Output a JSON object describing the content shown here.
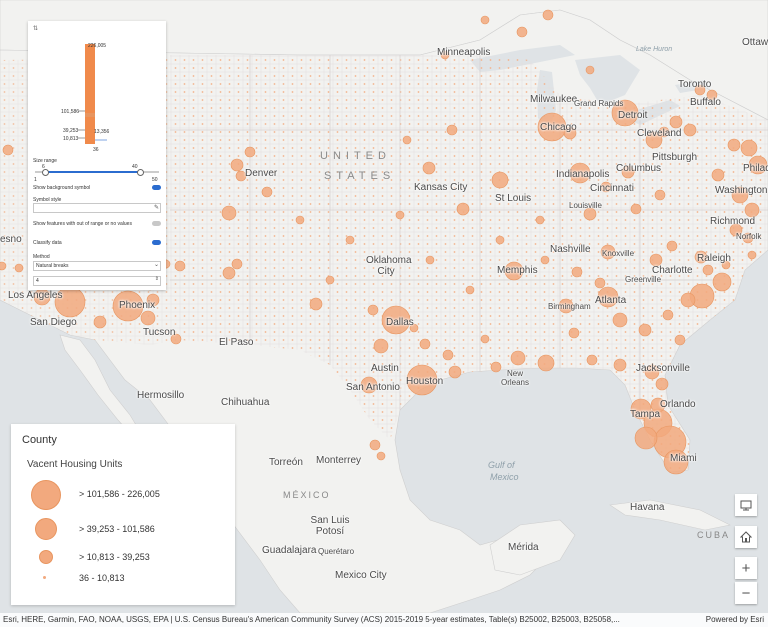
{
  "map": {
    "country_label": "UNITED STATES",
    "country_label_line1": "UNITED",
    "country_label_line2": "STATES",
    "mexico_label": "MÉXICO",
    "cuba_label": "CUBA",
    "gulf_label_1": "Gulf of",
    "gulf_label_2": "Mexico",
    "lake_label": "Lake Huron",
    "cities": [
      {
        "name": "Minneapolis"
      },
      {
        "name": "Milwaukee"
      },
      {
        "name": "Grand Rapids"
      },
      {
        "name": "Detroit"
      },
      {
        "name": "Toronto"
      },
      {
        "name": "Ottawa"
      },
      {
        "name": "Buffalo"
      },
      {
        "name": "Cleveland"
      },
      {
        "name": "Chicago"
      },
      {
        "name": "Pittsburgh"
      },
      {
        "name": "Philad"
      },
      {
        "name": "Washington"
      },
      {
        "name": "Columbus"
      },
      {
        "name": "Indianapolis"
      },
      {
        "name": "Cincinnati"
      },
      {
        "name": "Denver"
      },
      {
        "name": "Kansas City"
      },
      {
        "name": "St Louis"
      },
      {
        "name": "Louisville"
      },
      {
        "name": "Richmond"
      },
      {
        "name": "Norfolk"
      },
      {
        "name": "Nashville"
      },
      {
        "name": "Knoxville"
      },
      {
        "name": "Charlotte"
      },
      {
        "name": "Raleigh"
      },
      {
        "name": "Greenville"
      },
      {
        "name": "Oklahoma City"
      },
      {
        "name": "Memphis"
      },
      {
        "name": "Atlanta"
      },
      {
        "name": "Birmingham"
      },
      {
        "name": "Los Angeles"
      },
      {
        "name": "San Diego"
      },
      {
        "name": "Phoenix"
      },
      {
        "name": "Tucson"
      },
      {
        "name": "El Paso"
      },
      {
        "name": "Dallas"
      },
      {
        "name": "Austin"
      },
      {
        "name": "San Antonio"
      },
      {
        "name": "Houston"
      },
      {
        "name": "New Orleans"
      },
      {
        "name": "Jacksonville"
      },
      {
        "name": "Orlando"
      },
      {
        "name": "Tampa"
      },
      {
        "name": "Miami"
      },
      {
        "name": "Hermosillo"
      },
      {
        "name": "Chihuahua"
      },
      {
        "name": "Torreón"
      },
      {
        "name": "Monterrey"
      },
      {
        "name": "San Luis Potosí"
      },
      {
        "name": "Guadalajara"
      },
      {
        "name": "Querétaro"
      },
      {
        "name": "Mexico City"
      },
      {
        "name": "Mérida"
      },
      {
        "name": "Havana"
      },
      {
        "name": "esno"
      }
    ]
  },
  "panel": {
    "histogram_max": "226,005",
    "histogram_break1": "101,586",
    "histogram_break2": "39,253",
    "histogram_break3": "10,813",
    "histogram_min": "36",
    "histogram_extra": "13,356",
    "size_range_label": "Size range",
    "size_min_top": "6",
    "size_max_top": "40",
    "size_min_bottom": "1",
    "size_max_bottom": "50",
    "show_background_label": "Show background symbol",
    "symbol_style_label": "Symbol style",
    "show_out_of_range_label": "Show features with out of range or no values",
    "classify_label": "Classify data",
    "method_label": "Method",
    "method_value": "Natural breaks",
    "classes_value": "4"
  },
  "legend": {
    "title": "County",
    "subtitle": "Vacent Housing Units",
    "items": [
      {
        "label": "> 101,586 - 226,005"
      },
      {
        "label": "> 39,253 - 101,586"
      },
      {
        "label": "> 10,813 - 39,253"
      },
      {
        "label": "36 - 10,813"
      }
    ]
  },
  "controls": {
    "zoom_in": "+",
    "zoom_out": "−"
  },
  "attribution": {
    "text": "Esri, HERE, Garmin, FAO, NOAA, USGS, EPA | U.S. Census Bureau's American Community Survey (ACS) 2015-2019 5-year estimates, Table(s) B25002, B25003, B25058,...",
    "powered": "Powered by Esri"
  },
  "colors": {
    "symbol_fill": "#f2a97e",
    "symbol_stroke": "#e8955f",
    "land": "#f2f2f0",
    "water": "#dfe3e6",
    "toggle_on": "#2b6ccf",
    "histogram_bar": "#f08a4b"
  }
}
